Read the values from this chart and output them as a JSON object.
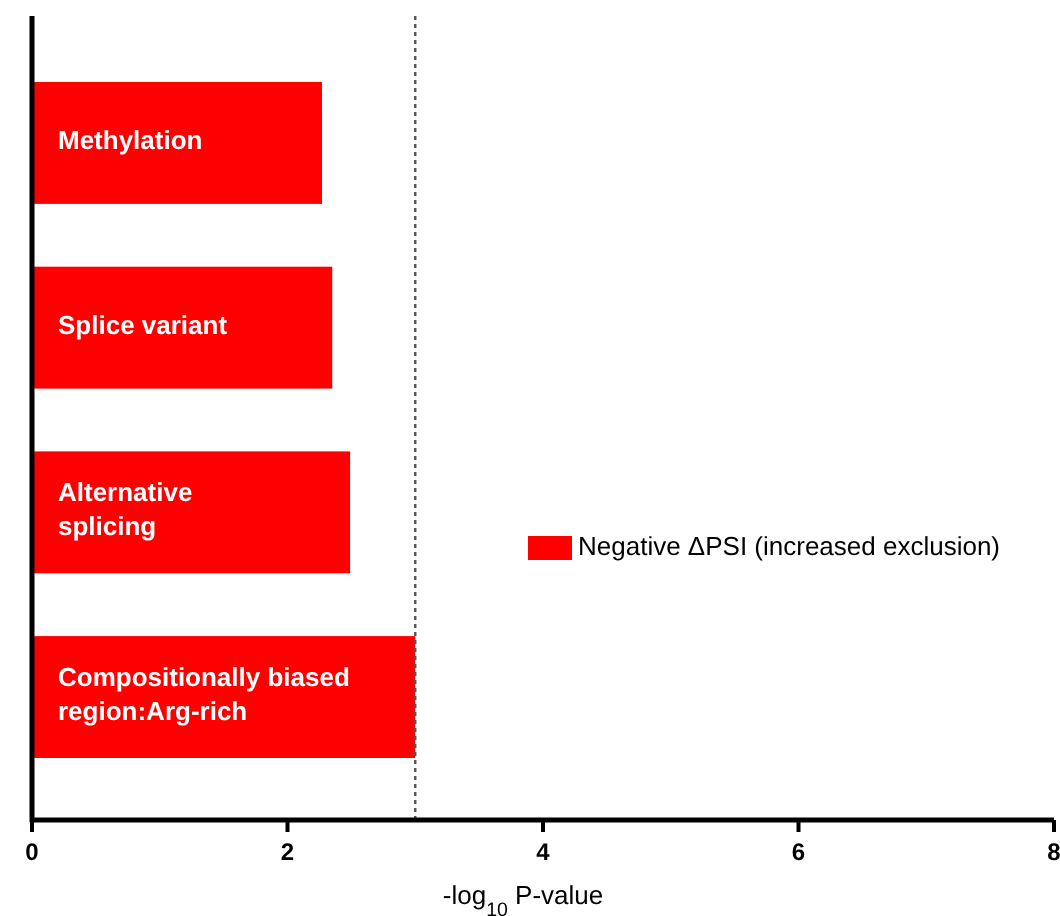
{
  "chart_data": {
    "type": "bar",
    "orientation": "horizontal",
    "categories": [
      "Methylation",
      "Splice variant",
      "Alternative splicing",
      "Compositionally biased region:Arg-rich"
    ],
    "series": [
      {
        "name": "Negative ΔPSI (increased exclusion)",
        "color": "#ff0000",
        "values": [
          2.27,
          2.35,
          2.49,
          3.0
        ]
      }
    ],
    "xlabel": "-log$_{10}$ P-value",
    "xlim": [
      0,
      8
    ],
    "xticks": [
      0,
      2,
      4,
      6,
      8
    ],
    "ref_lines": [
      {
        "axis": "x",
        "value": 3,
        "line_style": "dotted",
        "color": "#555555"
      }
    ],
    "legend": "right",
    "grid": false
  }
}
